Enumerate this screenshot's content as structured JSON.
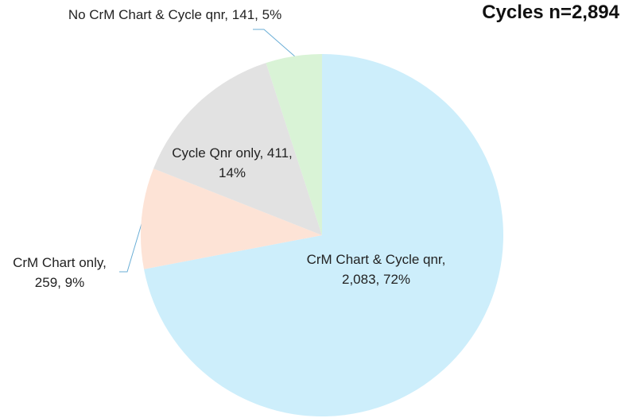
{
  "chart_data": {
    "type": "pie",
    "title": "Cycles n=2,894",
    "categories": [
      "CrM Chart & Cycle qnr,",
      "CrM Chart only,",
      "Cycle Qnr only,",
      "No CrM Chart & Cycle qnr,"
    ],
    "counts": [
      2083,
      259,
      411,
      141
    ],
    "count_labels": [
      "2,083,",
      "259,",
      "411,",
      "141,"
    ],
    "values": [
      72,
      9,
      14,
      5
    ],
    "value_labels": [
      "72%",
      "9%",
      "14%",
      "5%"
    ],
    "colors": [
      "#cdeefb",
      "#fde3d6",
      "#e2e2e2",
      "#d9f3d6"
    ]
  }
}
